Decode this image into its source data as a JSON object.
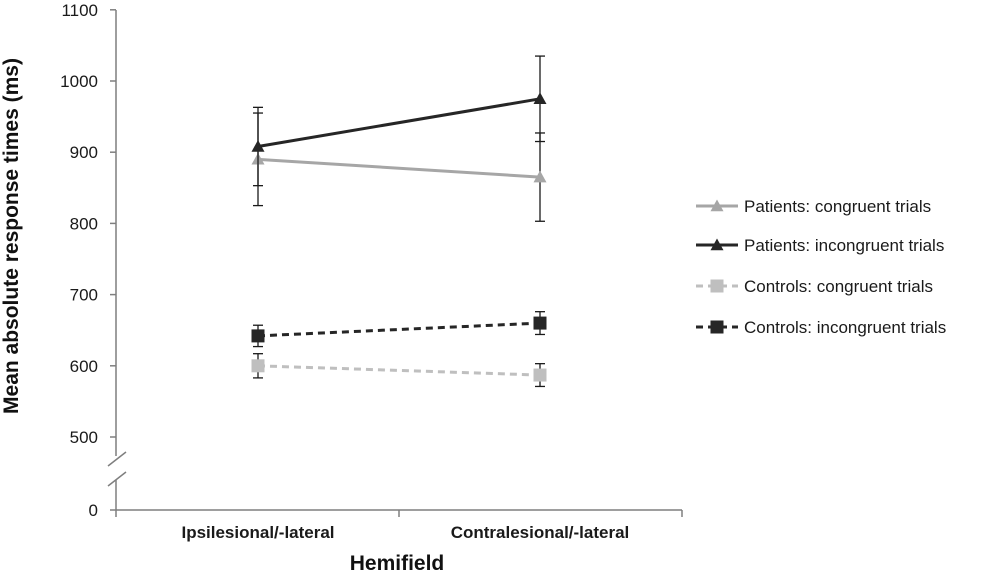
{
  "chart_data": {
    "type": "line",
    "xlabel": "Hemifield",
    "ylabel": "Mean absolute response times (ms)",
    "categories": [
      "Ipsilesional/-lateral",
      "Contralesional/-lateral"
    ],
    "y_ticks": [
      "0",
      "500",
      "600",
      "700",
      "800",
      "900",
      "1000",
      "1100"
    ],
    "ylim": [
      450,
      1100
    ],
    "axis_break": true,
    "legend_position": "right",
    "series": [
      {
        "name": "Patients: congruent trials",
        "values": [
          890,
          865
        ],
        "errors": [
          65,
          62
        ],
        "color": "#a6a6a6",
        "dashed": false,
        "marker": "triangle"
      },
      {
        "name": "Patients: incongruent trials",
        "values": [
          908,
          975
        ],
        "errors": [
          55,
          60
        ],
        "color": "#262626",
        "dashed": false,
        "marker": "triangle"
      },
      {
        "name": "Controls: congruent trials",
        "values": [
          600,
          587
        ],
        "errors": [
          17,
          16
        ],
        "color": "#bfbfbf",
        "dashed": true,
        "marker": "square"
      },
      {
        "name": "Controls: incongruent trials",
        "values": [
          642,
          660
        ],
        "errors": [
          15,
          16
        ],
        "color": "#262626",
        "dashed": true,
        "marker": "square"
      }
    ]
  }
}
